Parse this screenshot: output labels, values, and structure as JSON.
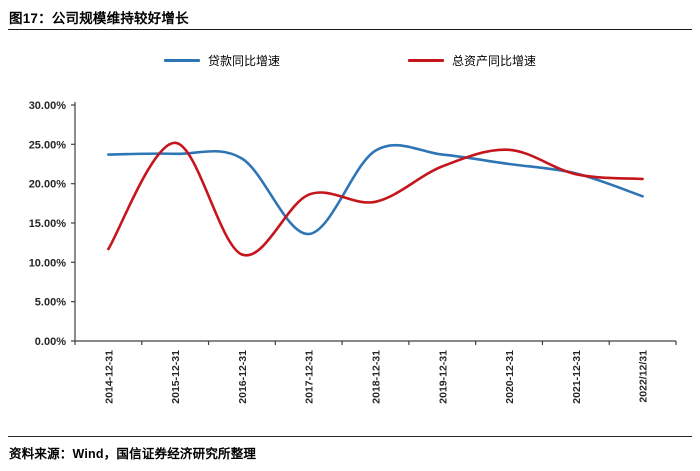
{
  "header": {
    "title": "图17：公司规模维持较好增长"
  },
  "footer": {
    "source": "资料来源：Wind，国信证券经济研究所整理"
  },
  "chart_data": {
    "type": "line",
    "title": "图17：公司规模维持较好增长",
    "categories": [
      "2014-12-31",
      "2015-12-31",
      "2016-12-31",
      "2017-12-31",
      "2018-12-31",
      "2019-12-31",
      "2020-12-31",
      "2021-12-31",
      "2022/12/31"
    ],
    "series": [
      {
        "name": "贷款同比增速",
        "color": "#2E75B6",
        "values": [
          23.7,
          23.8,
          23.2,
          13.6,
          24.2,
          23.7,
          22.5,
          21.3,
          18.4
        ]
      },
      {
        "name": "总资产同比增速",
        "color": "#C5161D",
        "values": [
          11.7,
          25.2,
          11.0,
          18.6,
          17.7,
          22.2,
          24.3,
          21.2,
          20.6
        ]
      }
    ],
    "xlabel": "",
    "ylabel": "",
    "ylim": [
      0,
      30
    ],
    "yticks": [
      {
        "value": 0,
        "label": "0.00%"
      },
      {
        "value": 5,
        "label": "5.00%"
      },
      {
        "value": 10,
        "label": "10.00%"
      },
      {
        "value": 15,
        "label": "15.00%"
      },
      {
        "value": 20,
        "label": "20.00%"
      },
      {
        "value": 25,
        "label": "25.00%"
      },
      {
        "value": 30,
        "label": "30.00%"
      }
    ],
    "grid": false,
    "smooth": true,
    "legend_position": "top",
    "axis_color": "#404040",
    "tick_label_color": "#262626"
  }
}
